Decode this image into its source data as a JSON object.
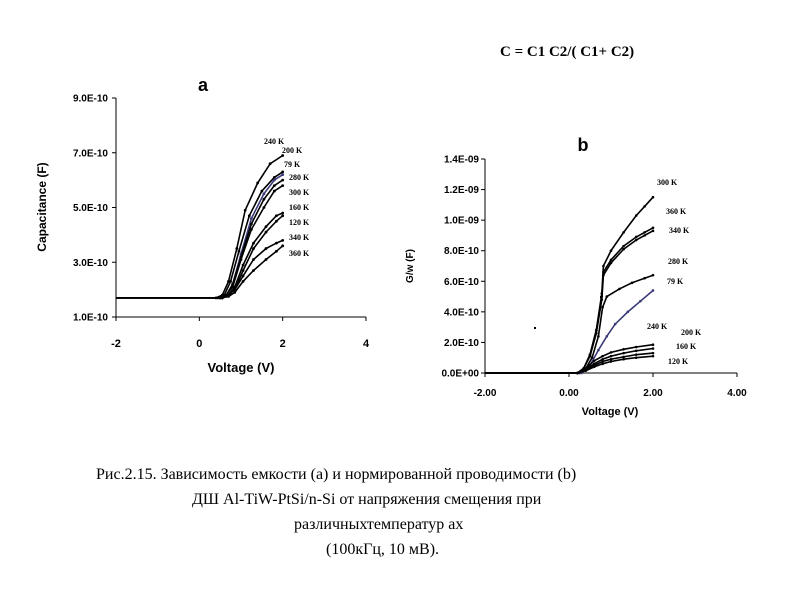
{
  "formula": "C = C1 C2/( C1+ C2)",
  "caption": {
    "line1": "Рис.2.15. Зависимость емкости (a) и нормированной проводимости (b)",
    "line2": "ДШ Al-TiW-PtSi/n-Si от напряжения смещения при",
    "line3": "различныхтемператур ах",
    "line4": "(100кГц, 10 мВ)."
  },
  "chart_data": [
    {
      "type": "scatter",
      "panel_label": "a",
      "xlabel": "Voltage (V)",
      "ylabel": "Capacitance (F)",
      "xlim": [
        -2,
        4
      ],
      "ylim": [
        1e-10,
        9e-10
      ],
      "xticks": [
        -2,
        0,
        2,
        4
      ],
      "xtick_labels": [
        "-2",
        "0",
        "2",
        "4"
      ],
      "yticks": [
        1e-10,
        3e-10,
        5e-10,
        7e-10,
        9e-10
      ],
      "ytick_labels": [
        "1.0E-10",
        "3.0E-10",
        "5.0E-10",
        "7.0E-10",
        "9.0E-10"
      ],
      "grid": false,
      "series": [
        {
          "name": "240 K",
          "x": [
            -2,
            0.4,
            0.55,
            0.7,
            0.9,
            1.1,
            1.4,
            1.7,
            2.0
          ],
          "y": [
            1.7e-10,
            1.7e-10,
            1.8e-10,
            2.3e-10,
            3.5e-10,
            4.9e-10,
            5.9e-10,
            6.6e-10,
            6.9e-10
          ]
        },
        {
          "name": "200 K",
          "x": [
            -2,
            0.45,
            0.6,
            0.75,
            0.95,
            1.2,
            1.5,
            1.8,
            2.0
          ],
          "y": [
            1.7e-10,
            1.7e-10,
            1.8e-10,
            2.3e-10,
            3.4e-10,
            4.7e-10,
            5.6e-10,
            6.1e-10,
            6.3e-10
          ]
        },
        {
          "name": "79 K",
          "x": [
            -2,
            0.5,
            0.65,
            0.8,
            1.0,
            1.25,
            1.55,
            1.8,
            2.0
          ],
          "y": [
            1.7e-10,
            1.7e-10,
            1.8e-10,
            2.2e-10,
            3.3e-10,
            4.6e-10,
            5.5e-10,
            6e-10,
            6.2e-10
          ]
        },
        {
          "name": "280 K",
          "x": [
            -2,
            0.5,
            0.65,
            0.8,
            1.0,
            1.25,
            1.55,
            1.8,
            2.0
          ],
          "y": [
            1.7e-10,
            1.7e-10,
            1.8e-10,
            2.2e-10,
            3.2e-10,
            4.4e-10,
            5.3e-10,
            5.8e-10,
            6e-10
          ]
        },
        {
          "name": "300 K",
          "x": [
            -2,
            0.5,
            0.65,
            0.8,
            1.0,
            1.25,
            1.55,
            1.8,
            2.0
          ],
          "y": [
            1.7e-10,
            1.7e-10,
            1.8e-10,
            2.1e-10,
            3.1e-10,
            4.2e-10,
            5e-10,
            5.6e-10,
            5.8e-10
          ]
        },
        {
          "name": "160 K",
          "x": [
            -2,
            0.55,
            0.7,
            0.85,
            1.05,
            1.3,
            1.6,
            1.85,
            2.0
          ],
          "y": [
            1.7e-10,
            1.7e-10,
            1.8e-10,
            2.1e-10,
            2.9e-10,
            3.7e-10,
            4.3e-10,
            4.7e-10,
            4.8e-10
          ]
        },
        {
          "name": "120 K",
          "x": [
            -2,
            0.55,
            0.7,
            0.85,
            1.05,
            1.3,
            1.6,
            1.85,
            2.0
          ],
          "y": [
            1.7e-10,
            1.7e-10,
            1.8e-10,
            2e-10,
            2.7e-10,
            3.5e-10,
            4.1e-10,
            4.5e-10,
            4.7e-10
          ]
        },
        {
          "name": "340 K",
          "x": [
            -2,
            0.55,
            0.7,
            0.85,
            1.05,
            1.3,
            1.6,
            1.85,
            2.0
          ],
          "y": [
            1.7e-10,
            1.7e-10,
            1.8e-10,
            2e-10,
            2.5e-10,
            3.1e-10,
            3.5e-10,
            3.7e-10,
            3.8e-10
          ]
        },
        {
          "name": "360 K",
          "x": [
            -2,
            0.55,
            0.7,
            0.85,
            1.05,
            1.3,
            1.6,
            1.85,
            2.0
          ],
          "y": [
            1.7e-10,
            1.7e-10,
            1.75e-10,
            1.9e-10,
            2.3e-10,
            2.7e-10,
            3.1e-10,
            3.4e-10,
            3.6e-10
          ]
        }
      ]
    },
    {
      "type": "scatter",
      "panel_label": "b",
      "xlabel": "Voltage (V)",
      "ylabel": "G/w (F)",
      "xlim": [
        -2.0,
        4.0
      ],
      "ylim": [
        0,
        1.4e-09
      ],
      "xticks": [
        -2,
        0,
        2,
        4
      ],
      "xtick_labels": [
        "-2.00",
        "0.00",
        "2.00",
        "4.00"
      ],
      "yticks": [
        0,
        2e-10,
        4e-10,
        6e-10,
        8e-10,
        1e-09,
        1.2e-09,
        1.4e-09
      ],
      "ytick_labels": [
        "0.0E+00",
        "2.0E-10",
        "4.0E-10",
        "6.0E-10",
        "8.0E-10",
        "1.0E-09",
        "1.2E-09",
        "1.4E-09"
      ],
      "grid": false,
      "series": [
        {
          "name": "300 K",
          "x": [
            -2,
            0.2,
            0.35,
            0.5,
            0.65,
            0.78,
            0.82,
            1.0,
            1.3,
            1.6,
            1.8,
            2.0
          ],
          "y": [
            0,
            0,
            3e-11,
            1.2e-10,
            2.8e-10,
            5.2e-10,
            7e-10,
            8e-10,
            9.2e-10,
            1.03e-09,
            1.09e-09,
            1.15e-09
          ]
        },
        {
          "name": "360 K",
          "x": [
            -2,
            0.2,
            0.35,
            0.5,
            0.65,
            0.78,
            0.82,
            1.0,
            1.3,
            1.6,
            1.8,
            2.0
          ],
          "y": [
            0,
            0,
            3e-11,
            1.2e-10,
            2.8e-10,
            5e-10,
            6.6e-10,
            7.4e-10,
            8.3e-10,
            8.9e-10,
            9.2e-10,
            9.5e-10
          ]
        },
        {
          "name": "340 K",
          "x": [
            -2,
            0.2,
            0.35,
            0.5,
            0.65,
            0.78,
            0.82,
            1.0,
            1.3,
            1.6,
            1.8,
            2.0
          ],
          "y": [
            0,
            0,
            3e-11,
            1.1e-10,
            2.6e-10,
            4.8e-10,
            6.4e-10,
            7.2e-10,
            8.1e-10,
            8.7e-10,
            9e-10,
            9.3e-10
          ]
        },
        {
          "name": "280 K",
          "x": [
            -2,
            0.25,
            0.4,
            0.55,
            0.7,
            0.8,
            0.9,
            1.2,
            1.5,
            1.8,
            2.0
          ],
          "y": [
            0,
            0,
            3e-11,
            1e-10,
            2.4e-10,
            4.3e-10,
            5e-10,
            5.5e-10,
            5.9e-10,
            6.2e-10,
            6.4e-10
          ]
        },
        {
          "name": "79 K",
          "x": [
            -2,
            0.3,
            0.5,
            0.7,
            0.9,
            1.1,
            1.4,
            1.7,
            2.0
          ],
          "y": [
            0,
            0,
            5e-11,
            1.5e-10,
            2.4e-10,
            3.2e-10,
            4e-10,
            4.7e-10,
            5.4e-10
          ]
        },
        {
          "name": "240 K",
          "x": [
            -2,
            0.2,
            0.4,
            0.6,
            0.8,
            1.0,
            1.3,
            1.6,
            2.0
          ],
          "y": [
            0,
            0,
            3e-11,
            8e-11,
            1.1e-10,
            1.35e-10,
            1.55e-10,
            1.7e-10,
            1.85e-10
          ]
        },
        {
          "name": "200 K",
          "x": [
            -2,
            0.2,
            0.4,
            0.6,
            0.8,
            1.0,
            1.3,
            1.6,
            2.0
          ],
          "y": [
            0,
            0,
            2.5e-11,
            6e-11,
            9e-11,
            1.1e-10,
            1.3e-10,
            1.45e-10,
            1.6e-10
          ]
        },
        {
          "name": "160 K",
          "x": [
            -2,
            0.2,
            0.4,
            0.6,
            0.8,
            1.0,
            1.3,
            1.6,
            2.0
          ],
          "y": [
            0,
            0,
            2e-11,
            5e-11,
            7.5e-11,
            9e-11,
            1.05e-10,
            1.2e-10,
            1.3e-10
          ]
        },
        {
          "name": "120 K",
          "x": [
            -2,
            0.2,
            0.4,
            0.6,
            0.8,
            1.0,
            1.3,
            1.6,
            2.0
          ],
          "y": [
            0,
            0,
            1.5e-11,
            4e-11,
            6e-11,
            7.5e-11,
            9e-11,
            1e-10,
            1.1e-10
          ]
        }
      ]
    }
  ]
}
